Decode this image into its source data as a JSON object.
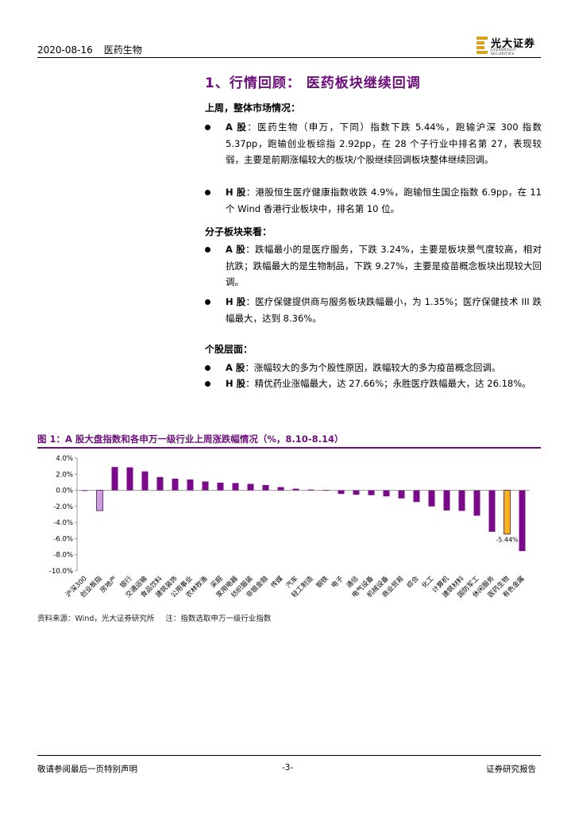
{
  "header": {
    "date": "2020-08-16",
    "category": "医药生物",
    "logo_name": "光大证券",
    "logo_sub": "EVERBRIGHT SECURITIES"
  },
  "section_title": "1、行情回顾：  医药板块继续回调",
  "blocks": [
    {
      "heading": "上周，整体市场情况：",
      "items": [
        {
          "label": "A 股",
          "text": "：医药生物（申万，下同）指数下跌 5.44%，跑输沪深 300 指数 5.37pp，跑输创业板综指 2.92pp，在 28 个子行业中排名第 27，表现较弱，主要是前期涨幅较大的板块/个股继续回调板块整体继续回调。"
        },
        {
          "label": "H 股",
          "text": "：港股恒生医疗健康指数收跌 4.9%，跑输恒生国企指数 6.9pp，在 11 个 Wind 香港行业板块中，排名第 10 位。"
        }
      ]
    },
    {
      "heading": "分子板块来看：",
      "items": [
        {
          "label": "A 股",
          "text": "：跌幅最小的是医疗服务，下跌 3.24%，主要是板块景气度较高，相对抗跌；跌幅最大的是生物制品，下跌 9.27%，主要是疫苗概念板块出现较大回调。"
        },
        {
          "label": "H 股",
          "text": "：医疗保健提供商与服务板块跌幅最小，为 1.35%；医疗保健技术 III 跌幅最大，达到 8.36%。"
        }
      ]
    },
    {
      "heading": "个股层面：",
      "items": [
        {
          "label": "A 股",
          "text": "：涨幅较大的多为个股性原因，跌幅较大的多为疫苗概念回调。"
        },
        {
          "label": "H 股",
          "text": "：精优药业涨幅最大，达 27.66%；永胜医疗跌幅最大，达 26.18%。"
        }
      ]
    }
  ],
  "figure": {
    "title": "图 1：A 股大盘指数和各申万一级行业上周涨跌幅情况（%，8.10-8.14）",
    "source": "资料来源：Wind，光大证券研究所",
    "note": "注：指数选取申万一级行业指数"
  },
  "chart_data": {
    "type": "bar",
    "categories": [
      "沪深300",
      "创业板指",
      "房地产",
      "银行",
      "交通运输",
      "食品饮料",
      "建筑装饰",
      "公用事业",
      "农林牧渔",
      "采掘",
      "家用电器",
      "纺织服装",
      "非银金融",
      "传媒",
      "汽车",
      "轻工制造",
      "钢铁",
      "电子",
      "通信",
      "电气设备",
      "机械设备",
      "商业贸易",
      "综合",
      "化工",
      "计算机",
      "建筑材料",
      "国防军工",
      "休闲服务",
      "医药生物",
      "有色金属"
    ],
    "values": [
      -0.07,
      -2.52,
      2.9,
      2.85,
      2.35,
      1.65,
      1.45,
      1.35,
      1.1,
      0.95,
      0.9,
      0.8,
      0.65,
      0.4,
      0.2,
      0.1,
      0.05,
      -0.45,
      -0.55,
      -0.6,
      -0.75,
      -1.0,
      -1.45,
      -2.0,
      -2.5,
      -2.55,
      -3.15,
      -5.15,
      -5.44,
      -7.55
    ],
    "bar_colors": [
      "#7b0a8a",
      "#c9a0dc",
      "#7b0a8a",
      "#7b0a8a",
      "#7b0a8a",
      "#7b0a8a",
      "#7b0a8a",
      "#7b0a8a",
      "#7b0a8a",
      "#7b0a8a",
      "#7b0a8a",
      "#7b0a8a",
      "#7b0a8a",
      "#7b0a8a",
      "#7b0a8a",
      "#7b0a8a",
      "#7b0a8a",
      "#7b0a8a",
      "#7b0a8a",
      "#7b0a8a",
      "#7b0a8a",
      "#7b0a8a",
      "#7b0a8a",
      "#7b0a8a",
      "#7b0a8a",
      "#7b0a8a",
      "#7b0a8a",
      "#7b0a8a",
      "#f4b41a",
      "#7b0a8a"
    ],
    "highlight_border": "#5a0a66",
    "y_ticks": [
      "4.0%",
      "2.0%",
      "0.0%",
      "-2.0%",
      "-4.0%",
      "-6.0%",
      "-8.0%",
      "-10.0%"
    ],
    "ylim": [
      -10,
      4
    ],
    "data_labels": [
      {
        "category": "医药生物",
        "text": "-5.44%"
      }
    ],
    "grid": false
  },
  "footer": {
    "left": "敬请参阅最后一页特别声明",
    "center": "-3-",
    "right": "证券研究报告"
  }
}
